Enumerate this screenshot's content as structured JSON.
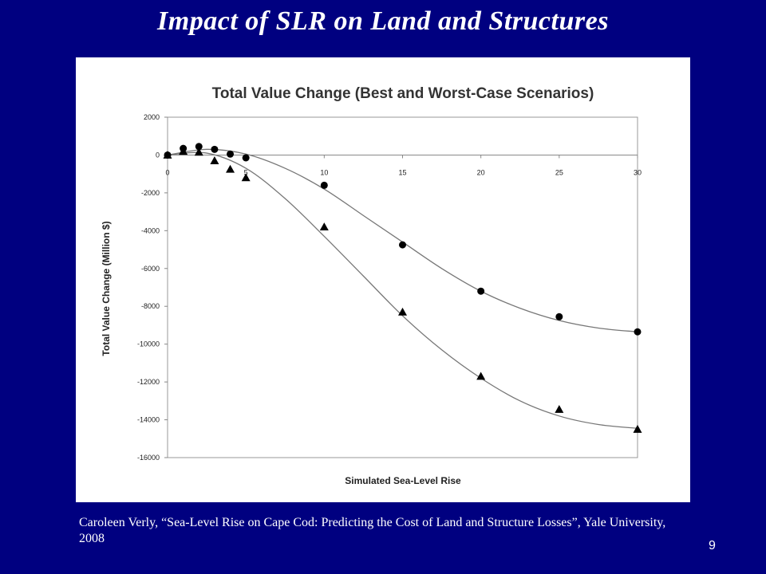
{
  "slide": {
    "title": "Impact of SLR on Land and Structures",
    "citation": "Caroleen Verly, “Sea-Level Rise on Cape Cod: Predicting the Cost of Land and Structure Losses”, Yale University, 2008",
    "page_number": "9",
    "colors": {
      "background": "#000080",
      "text": "#ffffff",
      "panel": "#ffffff"
    }
  },
  "chart_data": {
    "type": "scatter",
    "title": "Total Value Change (Best and Worst-Case Scenarios)",
    "xlabel": "Simulated Sea-Level Rise",
    "ylabel": "Total Value Change (Million $)",
    "xlim": [
      0,
      30
    ],
    "ylim": [
      -16000,
      2000
    ],
    "x_ticks": [
      0,
      5,
      10,
      15,
      20,
      25,
      30
    ],
    "y_ticks": [
      2000,
      0,
      -2000,
      -4000,
      -6000,
      -8000,
      -10000,
      -12000,
      -14000,
      -16000
    ],
    "grid": false,
    "series": [
      {
        "marker": "circle",
        "color": "#000000",
        "x": [
          0,
          1,
          2,
          3,
          4,
          5,
          10,
          15,
          20,
          25,
          30
        ],
        "y": [
          0,
          350,
          450,
          300,
          50,
          -150,
          -1600,
          -4750,
          -7200,
          -8550,
          -9350
        ],
        "trend": {
          "x": [
            0,
            2.5,
            5,
            7.5,
            10,
            12.5,
            15,
            17.5,
            20,
            22.5,
            25,
            27.5,
            30
          ],
          "y": [
            0,
            300,
            50,
            -700,
            -1800,
            -3200,
            -4600,
            -6000,
            -7200,
            -8100,
            -8750,
            -9150,
            -9350
          ]
        }
      },
      {
        "marker": "triangle",
        "color": "#000000",
        "x": [
          0,
          1,
          2,
          3,
          4,
          5,
          10,
          15,
          20,
          25,
          30
        ],
        "y": [
          0,
          200,
          150,
          -300,
          -750,
          -1200,
          -3800,
          -8300,
          -11700,
          -13450,
          -14500
        ],
        "trend": {
          "x": [
            0,
            2.5,
            5,
            7.5,
            10,
            12.5,
            15,
            17.5,
            20,
            22.5,
            25,
            27.5,
            30
          ],
          "y": [
            0,
            100,
            -700,
            -2300,
            -4300,
            -6400,
            -8500,
            -10300,
            -11800,
            -13000,
            -13800,
            -14250,
            -14450
          ]
        }
      }
    ]
  }
}
